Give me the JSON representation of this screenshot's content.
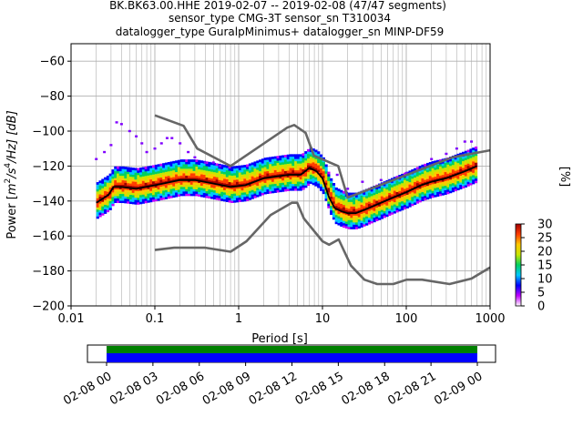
{
  "title_lines": [
    "BK.BK63.00.HHE   2019-02-07 -- 2019-02-08  (47/47 segments)",
    "sensor_type CMG-3T sensor_sn T310034",
    "datalogger_type GuralpMinimus+ datalogger_sn MINP-DF59"
  ],
  "chart_data": [
    {
      "type": "heatmap",
      "subtype": "probabilistic power spectral density",
      "xlabel": "Period [s]",
      "ylabel": "Power [m²/s⁴/Hz] [dB]",
      "ylabel_parts": {
        "prefix": "Power [",
        "m": "m",
        "exp1": "2",
        "slash1": "/s",
        "exp2": "4",
        "rest": "/Hz] [dB]"
      },
      "x_scale": "log",
      "xlim": [
        0.01,
        1000
      ],
      "ylim": [
        -200,
        -50
      ],
      "x_ticks": [
        0.01,
        0.1,
        1,
        10,
        100,
        1000
      ],
      "x_tick_labels": [
        "0.01",
        "0.1",
        "1",
        "10",
        "100",
        "1000"
      ],
      "y_ticks": [
        -200,
        -180,
        -160,
        -140,
        -120,
        -100,
        -80,
        -60
      ],
      "y_tick_labels": [
        "−200",
        "−180",
        "−160",
        "−140",
        "−120",
        "−100",
        "−80",
        "−60"
      ],
      "grid": true,
      "noise_model_color": "#666666",
      "high_noise_model": [
        [
          0.1,
          -91
        ],
        [
          0.22,
          -97
        ],
        [
          0.32,
          -110
        ],
        [
          0.8,
          -120
        ],
        [
          3.8,
          -98
        ],
        [
          4.6,
          -96.5
        ],
        [
          6.3,
          -101
        ],
        [
          7.9,
          -114
        ],
        [
          15.4,
          -120
        ],
        [
          20,
          -138
        ],
        [
          354.8,
          -115
        ],
        [
          1000,
          -111
        ]
      ],
      "low_noise_model": [
        [
          0.1,
          -168
        ],
        [
          0.17,
          -166.7
        ],
        [
          0.4,
          -166.7
        ],
        [
          0.8,
          -169
        ],
        [
          1.24,
          -163
        ],
        [
          2.4,
          -148
        ],
        [
          4.3,
          -141
        ],
        [
          5,
          -141
        ],
        [
          6,
          -150
        ],
        [
          10,
          -163
        ],
        [
          12,
          -165
        ],
        [
          15.6,
          -162
        ],
        [
          21.9,
          -177
        ],
        [
          31.6,
          -185
        ],
        [
          45,
          -187.5
        ],
        [
          70,
          -187.5
        ],
        [
          101,
          -185
        ],
        [
          154,
          -185
        ],
        [
          328,
          -187.5
        ],
        [
          600,
          -184.4
        ],
        [
          1000,
          -178
        ]
      ],
      "mean_curve": [
        [
          0.02,
          -141
        ],
        [
          0.025,
          -138
        ],
        [
          0.028,
          -136.5
        ],
        [
          0.032,
          -132
        ],
        [
          0.04,
          -132
        ],
        [
          0.06,
          -133
        ],
        [
          0.1,
          -131
        ],
        [
          0.2,
          -128
        ],
        [
          0.3,
          -128
        ],
        [
          0.5,
          -130
        ],
        [
          0.8,
          -132
        ],
        [
          1.2,
          -131
        ],
        [
          2,
          -127
        ],
        [
          4,
          -125
        ],
        [
          5.5,
          -125
        ],
        [
          7,
          -121
        ],
        [
          8.5,
          -123
        ],
        [
          10,
          -127
        ],
        [
          12,
          -138
        ],
        [
          14,
          -144
        ],
        [
          17,
          -146
        ],
        [
          20,
          -147
        ],
        [
          25,
          -147
        ],
        [
          32,
          -145
        ],
        [
          45,
          -142
        ],
        [
          70,
          -138
        ],
        [
          100,
          -135
        ],
        [
          150,
          -131
        ],
        [
          200,
          -129
        ],
        [
          300,
          -127
        ],
        [
          500,
          -123
        ],
        [
          700,
          -120
        ]
      ],
      "mean_color": "#000000",
      "spread_above_db": 11,
      "spread_below_db": 9,
      "outliers": [
        [
          0.02,
          -116
        ],
        [
          0.025,
          -112
        ],
        [
          0.03,
          -108
        ],
        [
          0.035,
          -95
        ],
        [
          0.04,
          -96
        ],
        [
          0.05,
          -100
        ],
        [
          0.06,
          -103
        ],
        [
          0.07,
          -107
        ],
        [
          0.08,
          -112
        ],
        [
          0.1,
          -110
        ],
        [
          0.12,
          -107
        ],
        [
          0.14,
          -104
        ],
        [
          0.16,
          -104
        ],
        [
          0.2,
          -107
        ],
        [
          0.25,
          -112
        ],
        [
          0.3,
          -115
        ],
        [
          0.4,
          -118
        ],
        [
          0.5,
          -118
        ],
        [
          0.6,
          -120
        ],
        [
          15,
          -125
        ],
        [
          20,
          -133
        ],
        [
          30,
          -129
        ],
        [
          50,
          -128
        ],
        [
          100,
          -124
        ],
        [
          200,
          -116
        ],
        [
          300,
          -113
        ],
        [
          400,
          -110
        ],
        [
          500,
          -106
        ],
        [
          600,
          -106
        ]
      ],
      "colorbar": {
        "label": "[%]",
        "range": [
          0,
          30
        ],
        "ticks": [
          0,
          5,
          10,
          15,
          20,
          25,
          30
        ],
        "tick_labels": [
          "0",
          "5",
          "10",
          "15",
          "20",
          "25",
          "30"
        ],
        "colormap": [
          "#ffffff",
          "#c000ff",
          "#0000ff",
          "#00c8ff",
          "#00d060",
          "#c8e600",
          "#ffc800",
          "#ff3c00",
          "#a00000"
        ]
      }
    },
    {
      "type": "timeline",
      "description": "data coverage bar",
      "x_tick_labels": [
        "02-08 00",
        "02-08 03",
        "02-08 06",
        "02-08 09",
        "02-08 12",
        "02-08 15",
        "02-08 18",
        "02-08 21",
        "02-09 00"
      ],
      "coverage_fraction_start": 0.0,
      "coverage_fraction_end": 1.0,
      "bands": [
        {
          "color": "#008000"
        },
        {
          "color": "#0000ff"
        }
      ]
    }
  ]
}
